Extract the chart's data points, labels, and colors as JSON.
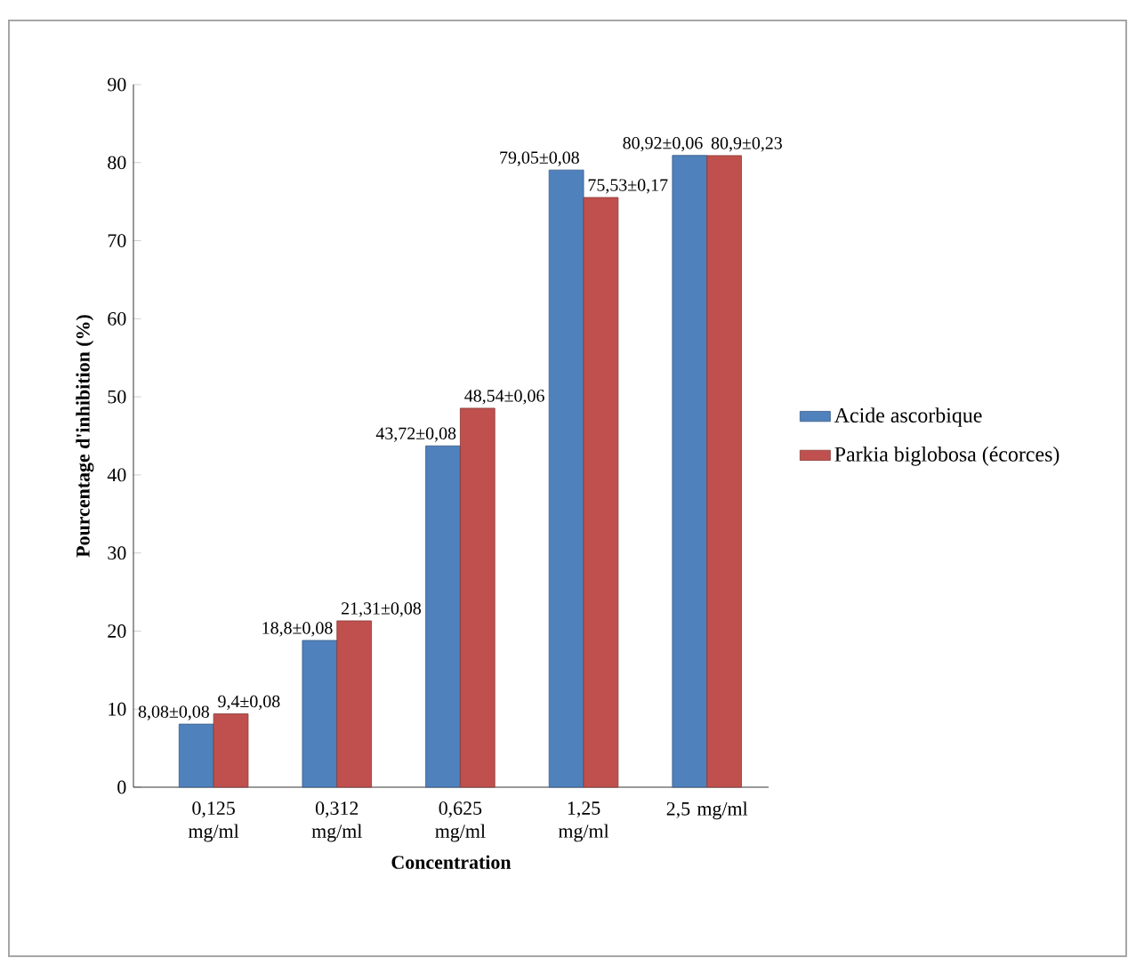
{
  "chart_data": {
    "type": "bar",
    "xlabel": "Concentration",
    "ylabel": "Pourcentage d'inhibition (%)",
    "categories": [
      "0,125 mg/ml",
      "0,312 mg/ml",
      "0,625 mg/ml",
      "1,25 mg/ml",
      "2,5 mg/ml"
    ],
    "series": [
      {
        "name": "Acide ascorbique",
        "color": "#4f81bd",
        "values": [
          8.08,
          18.8,
          43.72,
          79.05,
          80.92
        ],
        "value_labels": [
          "8,08±0,08",
          "18,8±0,08",
          "43,72±0,08",
          "79,05±0,08",
          "80,92±0,06"
        ]
      },
      {
        "name": "Parkia biglobosa (écorces)",
        "color": "#c0504d",
        "values": [
          9.4,
          21.31,
          48.54,
          75.53,
          80.9
        ],
        "value_labels": [
          "9,4±0,08",
          "21,31±0,08",
          "48,54±0,06",
          "75,53±0,17",
          "80,9±0,23"
        ]
      }
    ],
    "ylim": [
      0,
      90
    ],
    "yticks": [
      0,
      10,
      20,
      30,
      40,
      50,
      60,
      70,
      80,
      90
    ],
    "legend": "right"
  }
}
